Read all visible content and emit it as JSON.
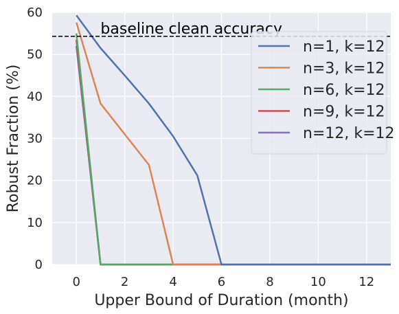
{
  "chart_data": {
    "type": "line",
    "xlabel": "Upper Bound of Duration (month)",
    "ylabel": "Robust Fraction (%)",
    "xlim": [
      -1,
      13
    ],
    "ylim": [
      0,
      60
    ],
    "xticks": [
      0,
      2,
      4,
      6,
      8,
      10,
      12
    ],
    "yticks": [
      0,
      10,
      20,
      30,
      40,
      50,
      60
    ],
    "grid": true,
    "legend_position": "upper right",
    "background": "#EAEAF2",
    "baseline": {
      "y": 54.3,
      "label": "baseline clean accuracy",
      "color": "#000000",
      "style": "dashed"
    },
    "series": [
      {
        "name": "n=1, k=12",
        "color": "#4C72B0",
        "x": [
          0,
          1,
          2,
          3,
          4,
          5,
          6,
          7,
          8,
          9,
          10,
          11,
          12,
          13
        ],
        "y": [
          59.3,
          51.5,
          45.0,
          38.3,
          30.5,
          21.2,
          0,
          0,
          0,
          0,
          0,
          0,
          0,
          0
        ]
      },
      {
        "name": "n=3, k=12",
        "color": "#DD8452",
        "x": [
          0,
          1,
          2,
          3,
          4,
          5,
          6,
          7,
          8,
          9,
          10,
          11,
          12,
          13
        ],
        "y": [
          57.6,
          38.3,
          31.0,
          23.7,
          0,
          0,
          0,
          0,
          0,
          0,
          0,
          0,
          0,
          0
        ]
      },
      {
        "name": "n=6, k=12",
        "color": "#55A868",
        "x": [
          0,
          1,
          2,
          3,
          4,
          5,
          6,
          7,
          8,
          9,
          10,
          11,
          12,
          13
        ],
        "y": [
          55.0,
          0,
          0,
          0,
          0,
          0,
          0,
          0,
          0,
          0,
          0,
          0,
          0,
          0
        ]
      },
      {
        "name": "n=9, k=12",
        "color": "#C44E52",
        "x": [
          0,
          1,
          2,
          3,
          4,
          5,
          6,
          7,
          8,
          9,
          10,
          11,
          12,
          13
        ],
        "y": [
          53.5,
          0,
          0,
          0,
          0,
          0,
          0,
          0,
          0,
          0,
          0,
          0,
          0,
          0
        ]
      },
      {
        "name": "n=12, k=12",
        "color": "#8172B3",
        "x": [
          0,
          1,
          2,
          3,
          4,
          5,
          6,
          7,
          8,
          9,
          10,
          11,
          12,
          13
        ],
        "y": [
          52.0,
          0,
          0,
          0,
          0,
          0,
          0,
          0,
          0,
          0,
          0,
          0,
          0,
          0
        ]
      }
    ]
  }
}
